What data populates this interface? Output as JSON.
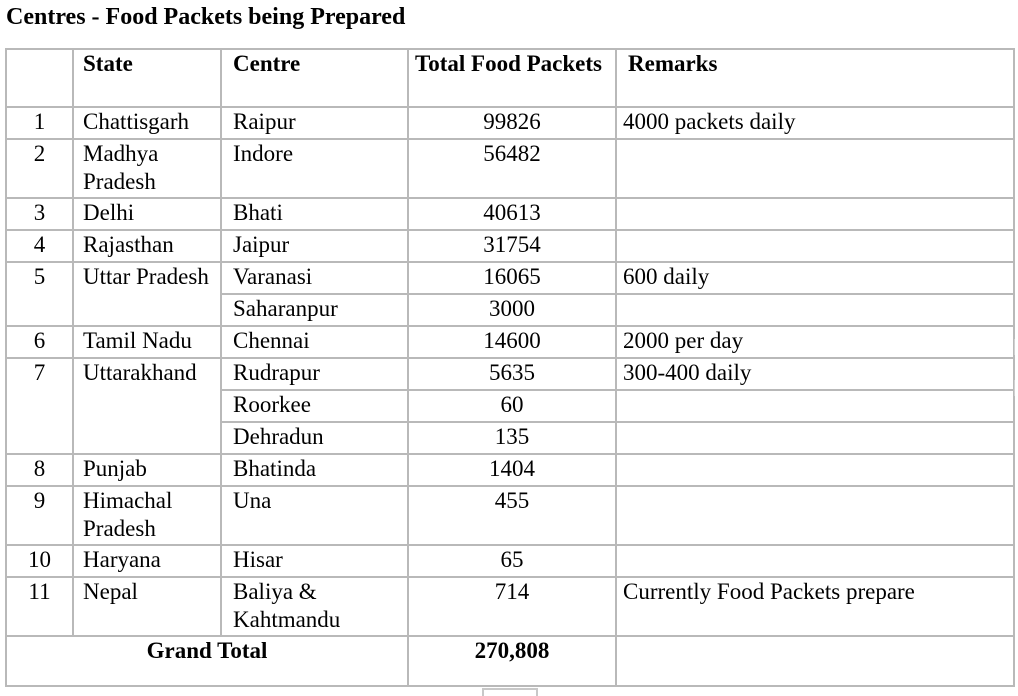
{
  "title": "Centres - Food Packets being Prepared",
  "headers": {
    "num": "",
    "state": "State",
    "centre": "Centre",
    "total": "Total Food Packets",
    "remarks": "Remarks"
  },
  "rows": [
    {
      "num": "1",
      "state": "Chattisgarh",
      "centre": "Raipur",
      "total": "99826",
      "remarks": "4000 packets daily"
    },
    {
      "num": "2",
      "state": "Madhya Pradesh",
      "centre": "Indore",
      "total": "56482",
      "remarks": ""
    },
    {
      "num": "3",
      "state": "Delhi",
      "centre": "Bhati",
      "total": "40613",
      "remarks": ""
    },
    {
      "num": "4",
      "state": "Rajasthan",
      "centre": "Jaipur",
      "total": "31754",
      "remarks": ""
    },
    {
      "num": "5",
      "state": "Uttar Pradesh",
      "centre": "Varanasi",
      "total": "16065",
      "remarks": "600 daily"
    },
    {
      "num": "",
      "state": "",
      "centre": "Saharanpur",
      "total": "3000",
      "remarks": ""
    },
    {
      "num": "6",
      "state": "Tamil Nadu",
      "centre": "Chennai",
      "total": "14600",
      "remarks": "2000 per day"
    },
    {
      "num": "7",
      "state": "Uttarakhand",
      "centre": "Rudrapur",
      "total": "5635",
      "remarks": "300-400 daily"
    },
    {
      "num": "",
      "state": "",
      "centre": "Roorkee",
      "total": "60",
      "remarks": ""
    },
    {
      "num": "",
      "state": "",
      "centre": "Dehradun",
      "total": "135",
      "remarks": ""
    },
    {
      "num": "8",
      "state": "Punjab",
      "centre": "Bhatinda",
      "total": "1404",
      "remarks": ""
    },
    {
      "num": "9",
      "state": "Himachal Pradesh",
      "centre": "Una",
      "total": "455",
      "remarks": ""
    },
    {
      "num": "10",
      "state": "Haryana",
      "centre": "Hisar",
      "total": "65",
      "remarks": ""
    },
    {
      "num": "11",
      "state": "Nepal",
      "centre": "Baliya & Kahtmandu",
      "total": "714",
      "remarks": "Currently Food Packets prepare"
    }
  ],
  "grand_total": {
    "label": "Grand Total",
    "value": "270,808"
  }
}
